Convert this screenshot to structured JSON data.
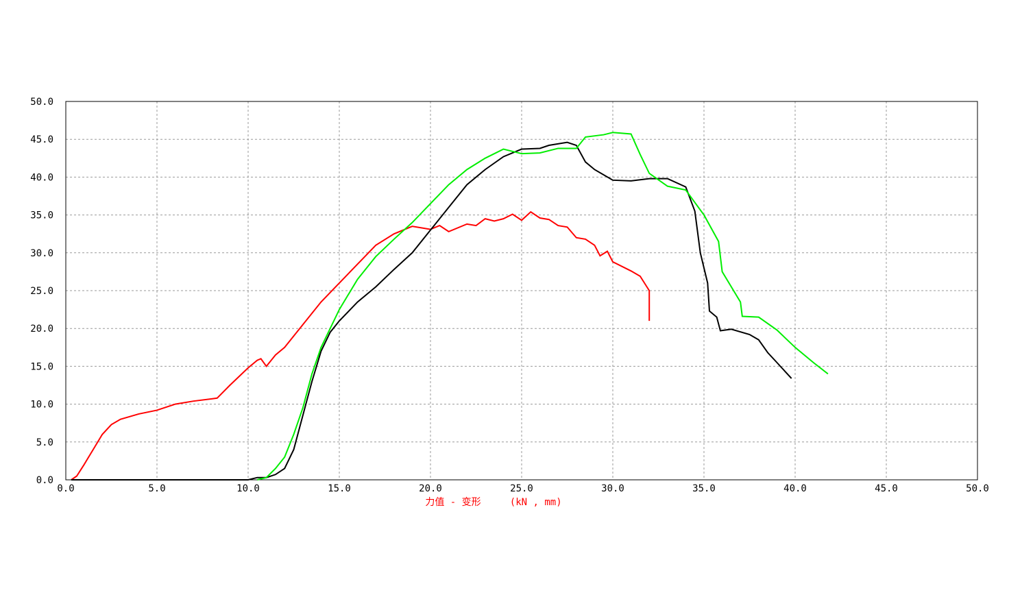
{
  "chart_data": {
    "type": "line",
    "xlabel": "力值 - 变形     (kN , mm)",
    "xlabel_color": "#ff0000",
    "xlim": [
      0,
      50
    ],
    "ylim": [
      0,
      50
    ],
    "grid": true,
    "xticks": [
      {
        "value": 0,
        "label": "0.0"
      },
      {
        "value": 5,
        "label": "5.0"
      },
      {
        "value": 10,
        "label": "10.0"
      },
      {
        "value": 15,
        "label": "15.0"
      },
      {
        "value": 20,
        "label": "20.0"
      },
      {
        "value": 25,
        "label": "25.0"
      },
      {
        "value": 30,
        "label": "30.0"
      },
      {
        "value": 35,
        "label": "35.0"
      },
      {
        "value": 40,
        "label": "40.0"
      },
      {
        "value": 45,
        "label": "45.0"
      },
      {
        "value": 50,
        "label": "50.0"
      }
    ],
    "yticks": [
      {
        "value": 0,
        "label": "0.0"
      },
      {
        "value": 5,
        "label": "5.0"
      },
      {
        "value": 10,
        "label": "10.0"
      },
      {
        "value": 15,
        "label": "15.0"
      },
      {
        "value": 20,
        "label": "20.0"
      },
      {
        "value": 25,
        "label": "25.0"
      },
      {
        "value": 30,
        "label": "30.0"
      },
      {
        "value": 35,
        "label": "35.0"
      },
      {
        "value": 40,
        "label": "40.0"
      },
      {
        "value": 45,
        "label": "45.0"
      },
      {
        "value": 50,
        "label": "50.0"
      }
    ],
    "series": [
      {
        "color": "#ff0000",
        "x": [
          0.3,
          0.6,
          1.0,
          1.5,
          2.0,
          2.5,
          3.0,
          4.0,
          5.0,
          6.0,
          7.0,
          8.0,
          8.3,
          9.0,
          10.0,
          10.5,
          10.7,
          11.0,
          11.5,
          12.0,
          13.0,
          14.0,
          15.0,
          16.0,
          17.0,
          18.0,
          19.0,
          19.5,
          20.0,
          20.5,
          21.0,
          22.0,
          22.5,
          23.0,
          23.5,
          24.0,
          24.5,
          25.0,
          25.5,
          26.0,
          26.5,
          27.0,
          27.5,
          28.0,
          28.5,
          29.0,
          29.3,
          29.7,
          30.0,
          31.0,
          31.5,
          32.0,
          32.0
        ],
        "values": [
          0,
          0.5,
          2,
          4,
          6,
          7.3,
          8,
          8.7,
          9.2,
          10,
          10.4,
          10.7,
          10.8,
          12.5,
          14.8,
          15.8,
          16,
          15,
          16.5,
          17.5,
          20.5,
          23.5,
          26,
          28.5,
          31,
          32.5,
          33.5,
          33.3,
          33.1,
          33.6,
          32.8,
          33.8,
          33.6,
          34.5,
          34.2,
          34.5,
          35.1,
          34.3,
          35.4,
          34.6,
          34.4,
          33.6,
          33.4,
          32,
          31.8,
          31,
          29.6,
          30.2,
          28.8,
          27.6,
          26.9,
          25,
          21
        ]
      },
      {
        "color": "#000000",
        "x": [
          0.3,
          10.0,
          10.5,
          11.0,
          11.5,
          12.0,
          12.5,
          13.0,
          13.5,
          14.0,
          14.5,
          15.0,
          16.0,
          17.0,
          18.0,
          19.0,
          20.0,
          21.0,
          22.0,
          23.0,
          24.0,
          25.0,
          26.0,
          26.5,
          27.5,
          28.0,
          28.5,
          29.0,
          30.0,
          31.0,
          32.0,
          33.0,
          34.0,
          34.5,
          34.8,
          35.2,
          35.3,
          35.7,
          35.9,
          36.5,
          37.5,
          38.0,
          38.5,
          39.0,
          39.8
        ],
        "values": [
          0,
          0,
          0.3,
          0.3,
          0.7,
          1.5,
          4,
          8.5,
          13,
          17,
          19.5,
          21,
          23.5,
          25.5,
          27.8,
          30,
          33,
          36,
          39,
          41,
          42.7,
          43.7,
          43.8,
          44.2,
          44.6,
          44.2,
          42,
          41,
          39.6,
          39.5,
          39.8,
          39.8,
          38.7,
          35.5,
          30,
          26,
          22.3,
          21.5,
          19.7,
          19.9,
          19.2,
          18.5,
          16.8,
          15.5,
          13.4
        ]
      },
      {
        "color": "#00ee00",
        "x": [
          10.5,
          11.0,
          11.5,
          12.0,
          12.5,
          13.0,
          13.5,
          14.0,
          14.5,
          15.0,
          16.0,
          17.0,
          18.0,
          19.0,
          20.0,
          21.0,
          22.0,
          23.0,
          24.0,
          25.0,
          26.0,
          27.0,
          28.0,
          28.5,
          29.5,
          30.0,
          31.0,
          31.5,
          32.0,
          33.0,
          34.0,
          35.0,
          35.8,
          36.0,
          37.0,
          37.1,
          38.0,
          39.0,
          40.0,
          41.0,
          41.8
        ],
        "values": [
          0,
          0.3,
          1.5,
          3,
          6,
          9.5,
          14,
          17.5,
          20,
          22.5,
          26.5,
          29.5,
          31.8,
          34,
          36.5,
          39,
          41,
          42.5,
          43.7,
          43.1,
          43.2,
          43.8,
          43.8,
          45.3,
          45.6,
          45.9,
          45.7,
          43,
          40.5,
          38.8,
          38.3,
          35,
          31.5,
          27.5,
          23.5,
          21.6,
          21.5,
          19.8,
          17.5,
          15.5,
          14
        ]
      }
    ]
  }
}
